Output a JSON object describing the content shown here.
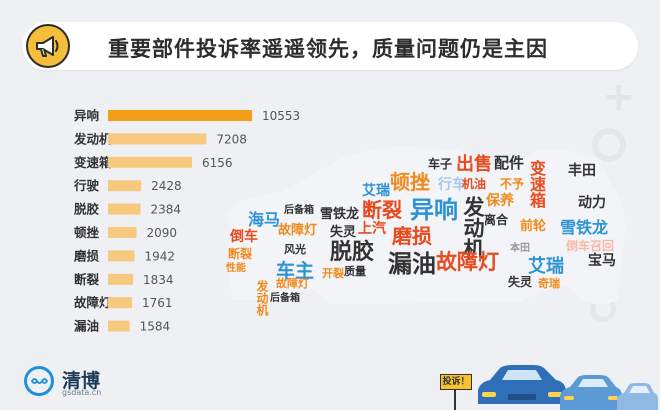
{
  "title": "重要部件投诉率遥遥领先，质量问题仍是主因",
  "icons": {
    "title_icon": "megaphone-icon",
    "logo_icon": "infinity-logo-icon",
    "sign_icon": "complaint-sign-icon"
  },
  "colors": {
    "bar_top": "#f29e16",
    "bar_other": "#f7c97f",
    "cloud_red": "#e84b1f",
    "cloud_blue": "#2d93d4",
    "cloud_orange": "#f08a1e"
  },
  "chart_data": {
    "type": "bar",
    "orientation": "horizontal",
    "categories": [
      "异响",
      "发动机",
      "变速箱",
      "行驶",
      "脱胶",
      "顿挫",
      "磨损",
      "断裂",
      "故障灯",
      "漏油"
    ],
    "values": [
      10553,
      7208,
      6156,
      2428,
      2384,
      2090,
      1942,
      1834,
      1761,
      1584
    ],
    "value_labels": [
      "10553",
      "7208",
      "6156",
      "2428",
      "2384",
      "2090",
      "1942",
      "1834",
      "1761",
      "1584"
    ],
    "xlim": [
      0,
      10553
    ],
    "grid": false,
    "legend": "none"
  },
  "word_cloud": [
    {
      "text": "车子",
      "color": "#333333"
    },
    {
      "text": "出售",
      "color": "#e84b1f"
    },
    {
      "text": "配件",
      "color": "#333333"
    },
    {
      "text": "丰田",
      "color": "#333333"
    },
    {
      "text": "艾瑞",
      "color": "#2d93d4"
    },
    {
      "text": "顿挫",
      "color": "#f08a1e"
    },
    {
      "text": "行车",
      "color": "#aac8e8"
    },
    {
      "text": "机油",
      "color": "#e84b1f"
    },
    {
      "text": "不予",
      "color": "#f08a1e"
    },
    {
      "text": "变速箱",
      "color": "#e84b1f"
    },
    {
      "text": "断裂",
      "color": "#e84b1f"
    },
    {
      "text": "异响",
      "color": "#2d93d4"
    },
    {
      "text": "发动机",
      "color": "#333333"
    },
    {
      "text": "保养",
      "color": "#f08a1e"
    },
    {
      "text": "动力",
      "color": "#333333"
    },
    {
      "text": "海马",
      "color": "#2d93d4"
    },
    {
      "text": "后备箱",
      "color": "#333333"
    },
    {
      "text": "雪铁龙",
      "color": "#333333"
    },
    {
      "text": "倒车",
      "color": "#e84b1f"
    },
    {
      "text": "故障灯",
      "color": "#f08a1e"
    },
    {
      "text": "失灵",
      "color": "#333333"
    },
    {
      "text": "上汽",
      "color": "#e84b1f"
    },
    {
      "text": "磨损",
      "color": "#e84b1f"
    },
    {
      "text": "离合",
      "color": "#333333"
    },
    {
      "text": "前轮",
      "color": "#f08a1e"
    },
    {
      "text": "雪铁龙",
      "color": "#2d93d4"
    },
    {
      "text": "断裂",
      "color": "#f08a1e"
    },
    {
      "text": "风光",
      "color": "#333333"
    },
    {
      "text": "脱胶",
      "color": "#333333"
    },
    {
      "text": "漏油",
      "color": "#333333"
    },
    {
      "text": "故障灯",
      "color": "#e84b1f"
    },
    {
      "text": "本田",
      "color": "#999999"
    },
    {
      "text": "倒车召回",
      "color": "#f7b9a6"
    },
    {
      "text": "性能",
      "color": "#f08a1e"
    },
    {
      "text": "车主",
      "color": "#2d93d4"
    },
    {
      "text": "艾瑞",
      "color": "#2d93d4"
    },
    {
      "text": "宝马",
      "color": "#333333"
    },
    {
      "text": "发动机",
      "color": "#f08a1e"
    },
    {
      "text": "开裂",
      "color": "#f08a1e"
    },
    {
      "text": "质量",
      "color": "#333333"
    },
    {
      "text": "失灵",
      "color": "#333333"
    },
    {
      "text": "奇瑞",
      "color": "#f08a1e"
    },
    {
      "text": "后备箱",
      "color": "#333333"
    },
    {
      "text": "故障灯",
      "color": "#f08a1e"
    }
  ],
  "logo": {
    "name": "清博",
    "sub": "gsdata.cn"
  },
  "sign_text": "投诉！"
}
